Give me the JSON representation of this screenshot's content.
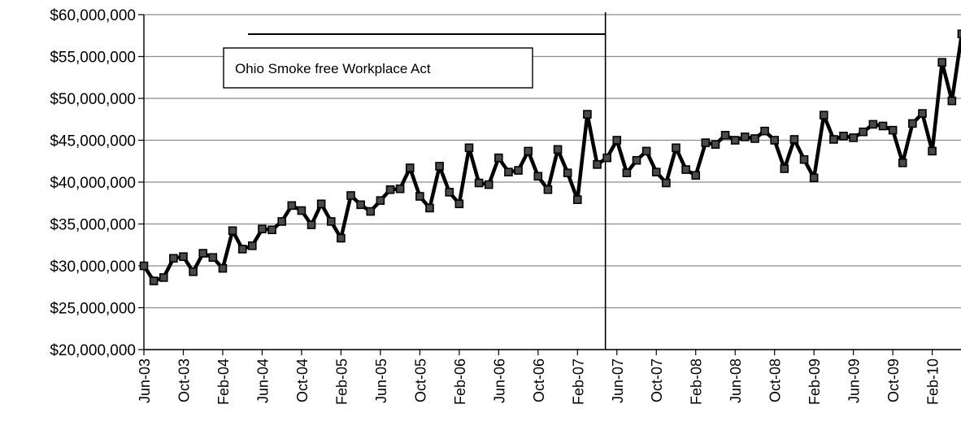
{
  "chart_data": {
    "type": "line",
    "title": "",
    "xlabel": "",
    "ylabel": "",
    "ylim": [
      20000000,
      60000000
    ],
    "yticks": [
      20000000,
      25000000,
      30000000,
      35000000,
      40000000,
      45000000,
      50000000,
      55000000,
      60000000
    ],
    "ytick_labels": [
      "$20,000,000",
      "$25,000,000",
      "$30,000,000",
      "$35,000,000",
      "$40,000,000",
      "$45,000,000",
      "$50,000,000",
      "$55,000,000",
      "$60,000,000"
    ],
    "x_start": "Jun-03",
    "x_ticks": [
      "Jun-03",
      "Oct-03",
      "Feb-04",
      "Jun-04",
      "Oct-04",
      "Feb-05",
      "Jun-05",
      "Oct-05",
      "Feb-06",
      "Jun-06",
      "Oct-06",
      "Feb-07",
      "Jun-07",
      "Oct-07",
      "Feb-08",
      "Jun-08",
      "Oct-08",
      "Feb-09",
      "Jun-09",
      "Oct-09",
      "Feb-10"
    ],
    "grid": true,
    "annotation": {
      "text": "Ohio Smoke free Workplace Act",
      "event_date": "May-07"
    },
    "series": [
      {
        "values": [
          30000000,
          28200000,
          28600000,
          30900000,
          31100000,
          29300000,
          31500000,
          31000000,
          29700000,
          34200000,
          32000000,
          32400000,
          34400000,
          34300000,
          35300000,
          37200000,
          36600000,
          34900000,
          37400000,
          35300000,
          33300000,
          38400000,
          37300000,
          36500000,
          37800000,
          39100000,
          39200000,
          41700000,
          38300000,
          36900000,
          41900000,
          38800000,
          37400000,
          44100000,
          39900000,
          39700000,
          42900000,
          41200000,
          41400000,
          43700000,
          40700000,
          39100000,
          43900000,
          41100000,
          37900000,
          48100000,
          42100000,
          42900000,
          45000000,
          41100000,
          42600000,
          43700000,
          41200000,
          39900000,
          44100000,
          41500000,
          40800000,
          44700000,
          44500000,
          45600000,
          45000000,
          45400000,
          45200000,
          46100000,
          45000000,
          41600000,
          45100000,
          42700000,
          40500000,
          48000000,
          45100000,
          45500000,
          45300000,
          46000000,
          46900000,
          46700000,
          46200000,
          42300000,
          47000000,
          48200000,
          43700000,
          54300000,
          49700000,
          57700000
        ]
      }
    ]
  }
}
